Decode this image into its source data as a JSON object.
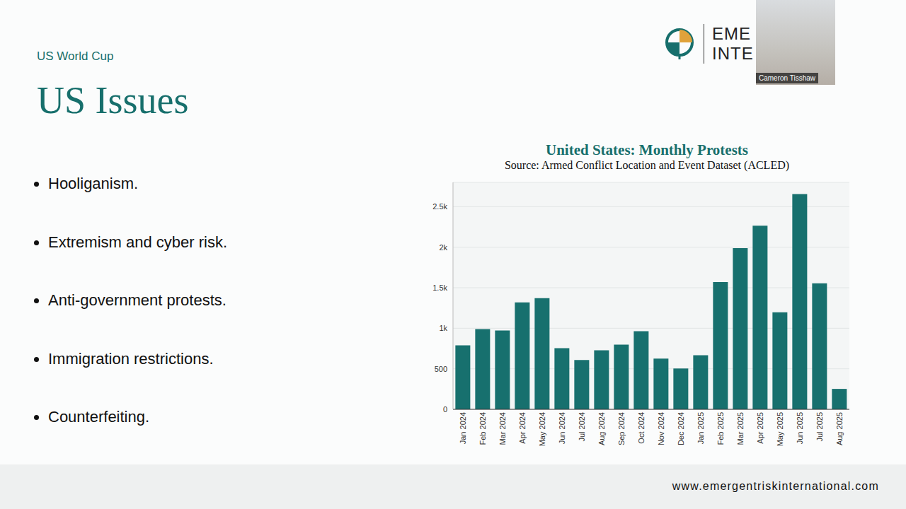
{
  "slide": {
    "kicker": "US World Cup",
    "title": "US Issues",
    "bullets": [
      "Hooliganism.",
      "Extremism and cyber risk.",
      "Anti-government protests.",
      "Immigration restrictions.",
      "Counterfeiting."
    ],
    "logo": [
      "EME",
      "INTE"
    ],
    "footer": "www.emergentriskinternational.com",
    "presenter": "Cameron Tisshaw"
  },
  "chart_data": {
    "type": "bar",
    "title": "United States: Monthly Protests",
    "subtitle": "Source: Armed Conflict Location and Event Dataset (ACLED)",
    "categories": [
      "Jan 2024",
      "Feb 2024",
      "Mar 2024",
      "Apr 2024",
      "May 2024",
      "Jun 2024",
      "Jul 2024",
      "Aug 2024",
      "Sep 2024",
      "Oct 2024",
      "Nov 2024",
      "Dec 2024",
      "Jan 2025",
      "Feb 2025",
      "Mar 2025",
      "Apr 2025",
      "May 2025",
      "Jun 2025",
      "Jul 2025",
      "Aug 2025"
    ],
    "values": [
      790,
      990,
      972,
      1320,
      1372,
      755,
      608,
      729,
      799,
      964,
      625,
      503,
      668,
      1571,
      1988,
      2266,
      1198,
      2656,
      1554,
      252
    ],
    "color": "#17706e",
    "ylim": [
      0,
      2800
    ],
    "yticks": [
      0,
      500,
      {
        "value": 1000,
        "label": "1k"
      },
      {
        "value": 1500,
        "label": "1.5k"
      },
      {
        "value": 2000,
        "label": "2k"
      },
      {
        "value": 2500,
        "label": "2.5k"
      }
    ],
    "grid": true
  }
}
